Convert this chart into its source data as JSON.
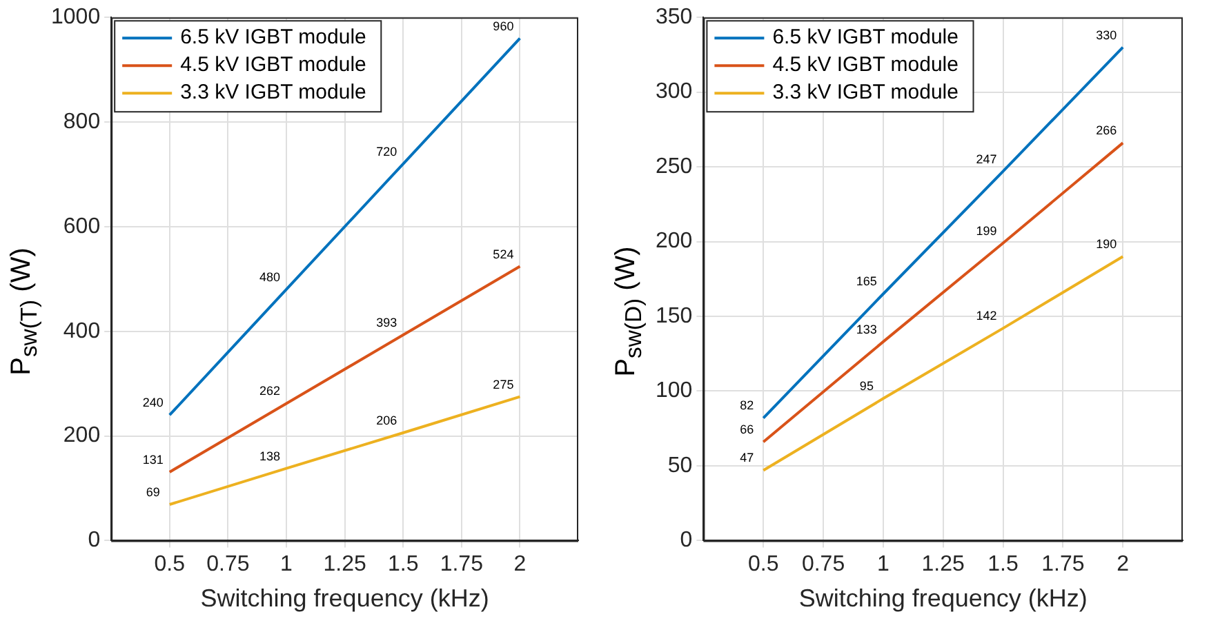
{
  "chart_data": [
    {
      "type": "line",
      "xlabel": "Switching frequency (kHz)",
      "ylabel": "P$_{sw(T)}$ (W)",
      "xlim": [
        0.25,
        2.25
      ],
      "xticks": [
        0.5,
        0.75,
        1,
        1.25,
        1.5,
        1.75,
        2
      ],
      "ylim": [
        0,
        1000
      ],
      "yticks": [
        0,
        200,
        400,
        600,
        800,
        1000
      ],
      "x": [
        0.5,
        1,
        1.5,
        2
      ],
      "series": [
        {
          "name": "6.5 kV IGBT module",
          "color": "#0072bd",
          "values": [
            240,
            480,
            720,
            960
          ]
        },
        {
          "name": "4.5 kV IGBT module",
          "color": "#d95319",
          "values": [
            131,
            262,
            393,
            524
          ]
        },
        {
          "name": "3.3 kV IGBT module",
          "color": "#edb120",
          "values": [
            69,
            138,
            206,
            275
          ]
        }
      ],
      "data_labels": true,
      "grid": true,
      "legend": "top left",
      "marker": "none",
      "line_style": "solid"
    },
    {
      "type": "line",
      "xlabel": "Switching frequency (kHz)",
      "ylabel": "P$_{sw(D)}$ (W)",
      "xlim": [
        0.25,
        2.25
      ],
      "xticks": [
        0.5,
        0.75,
        1,
        1.25,
        1.5,
        1.75,
        2
      ],
      "ylim": [
        0,
        350
      ],
      "yticks": [
        0,
        50,
        100,
        150,
        200,
        250,
        300,
        350
      ],
      "x": [
        0.5,
        1,
        1.5,
        2
      ],
      "series": [
        {
          "name": "6.5 kV IGBT module",
          "color": "#0072bd",
          "values": [
            82,
            165,
            247,
            330
          ]
        },
        {
          "name": "4.5 kV IGBT module",
          "color": "#d95319",
          "values": [
            66,
            133,
            199,
            266
          ]
        },
        {
          "name": "3.3 kV IGBT module",
          "color": "#edb120",
          "values": [
            47,
            95,
            142,
            190
          ]
        }
      ],
      "data_labels": true,
      "grid": true,
      "legend": "top left",
      "marker": "none",
      "line_style": "solid"
    }
  ]
}
